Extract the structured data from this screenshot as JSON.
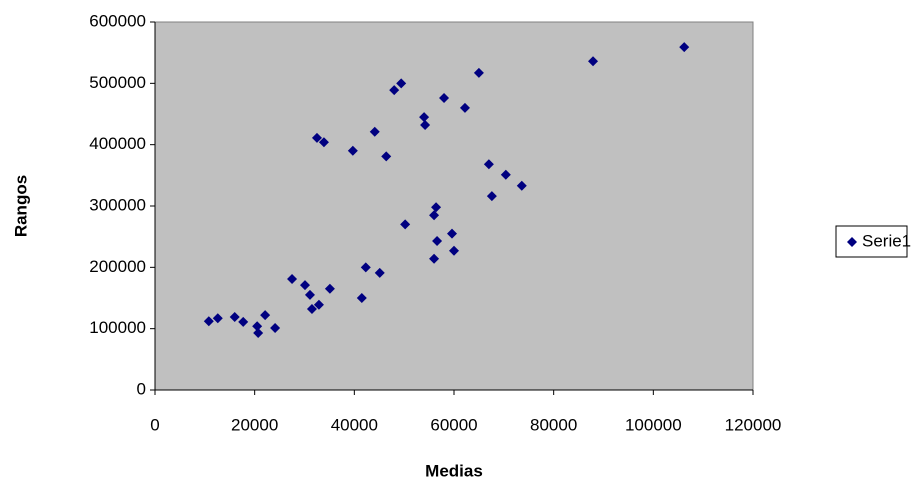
{
  "chart_data": {
    "type": "scatter",
    "x_label": "Medias",
    "y_label": "Rangos",
    "x": [
      10800,
      12600,
      16000,
      17700,
      20500,
      20700,
      22100,
      24100,
      27500,
      30100,
      31100,
      31500,
      32900,
      35100,
      32500,
      33900,
      39700,
      41500,
      42300,
      45100,
      44100,
      46400,
      48000,
      49400,
      50200,
      54000,
      54200,
      58000,
      56400,
      56000,
      56600,
      56000,
      59600,
      60000,
      62200,
      65000,
      67000,
      67600,
      70400,
      73600,
      87900,
      106200
    ],
    "series": [
      {
        "name": "Serie1",
        "color": "#000080",
        "values": [
          112000,
          117000,
          119000,
          111000,
          104000,
          93000,
          122000,
          101000,
          181000,
          171000,
          155000,
          132000,
          139000,
          165000,
          411000,
          404000,
          390000,
          150000,
          200000,
          191000,
          421000,
          381000,
          489000,
          500000,
          270000,
          445000,
          432000,
          476000,
          298000,
          285000,
          243000,
          214000,
          255000,
          227000,
          460000,
          517000,
          368000,
          316000,
          351000,
          333000,
          536000,
          559000
        ]
      }
    ],
    "xlim": [
      0,
      120000
    ],
    "xticks": [
      0,
      20000,
      40000,
      60000,
      80000,
      100000,
      120000
    ],
    "ylim": [
      0,
      600000
    ],
    "yticks": [
      0,
      100000,
      200000,
      300000,
      400000,
      500000,
      600000
    ],
    "grid": false,
    "legend": "right",
    "plot_background": "#c0c0c0"
  }
}
